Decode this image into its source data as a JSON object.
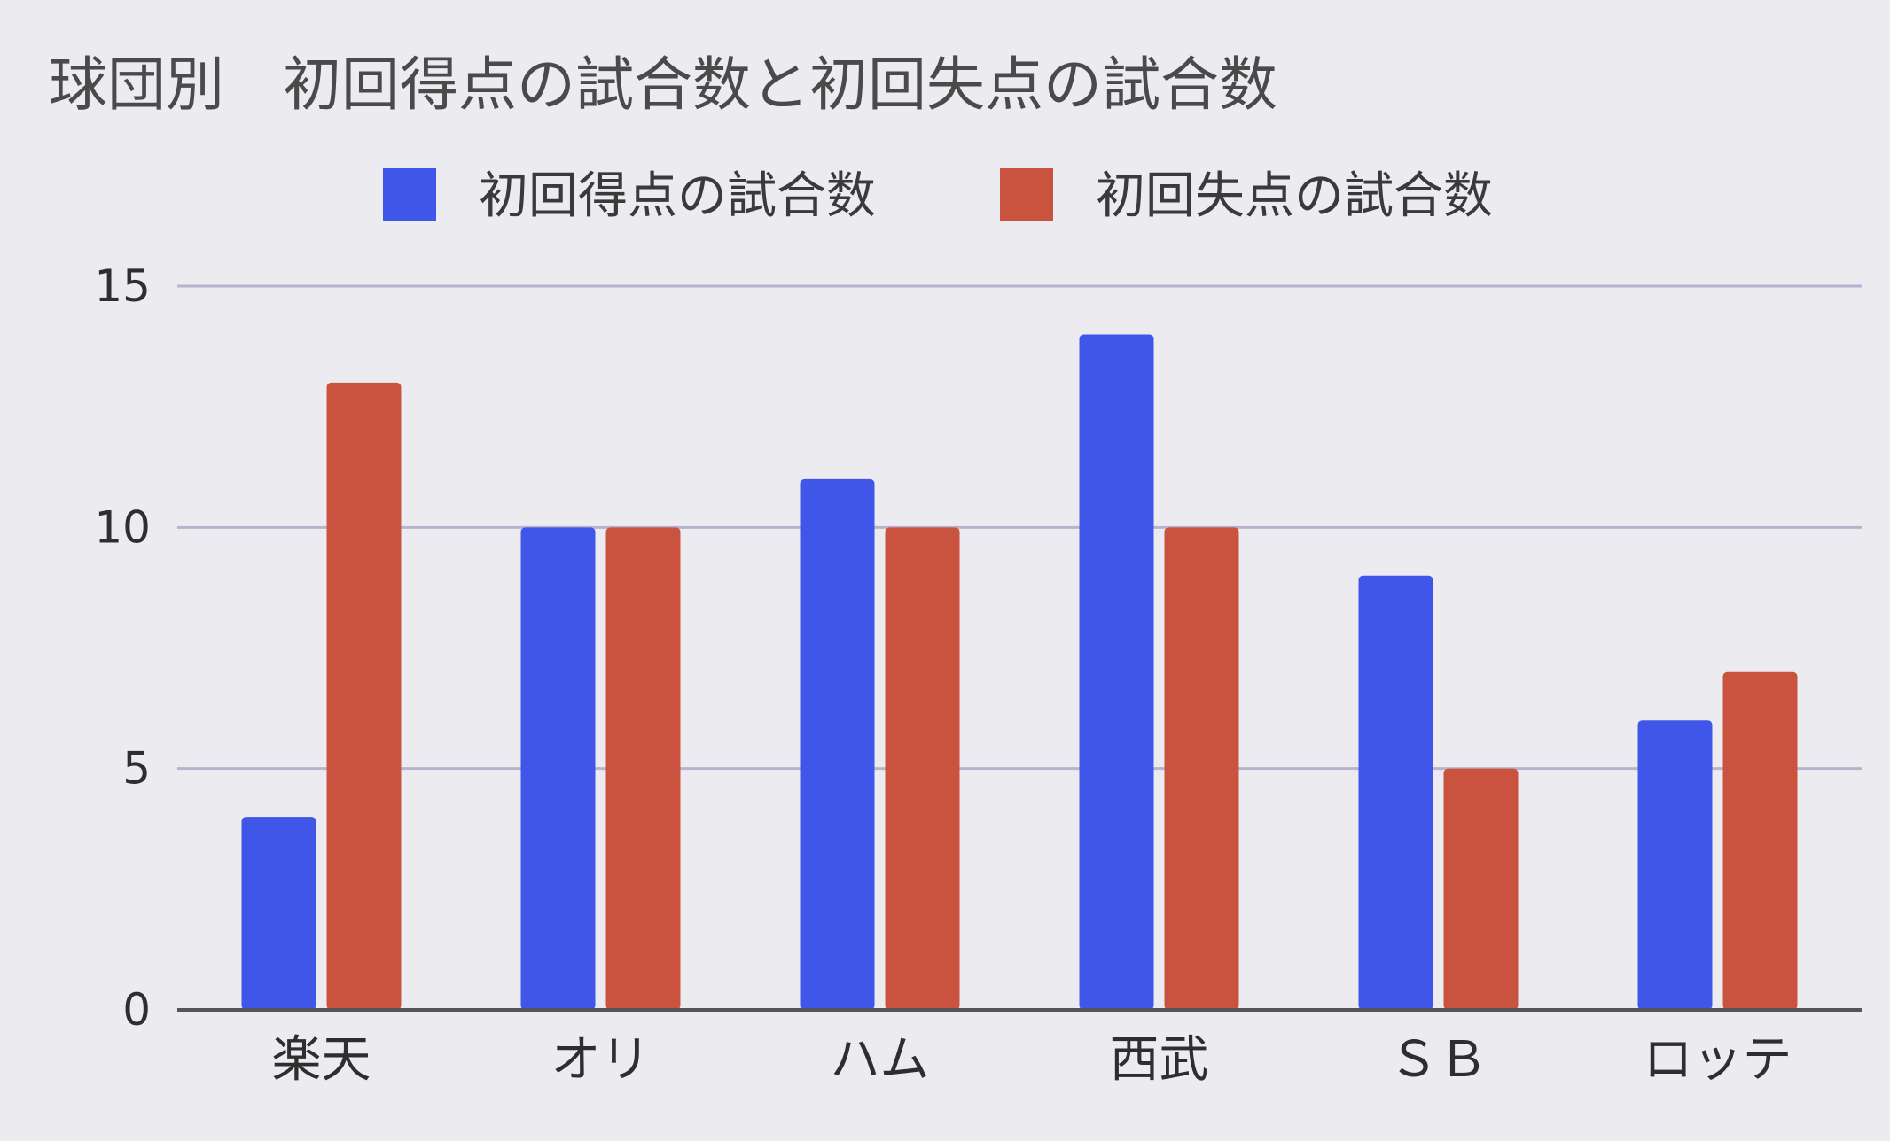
{
  "chart_data": {
    "type": "bar",
    "title": "球団別　初回得点の試合数と初回失点の試合数",
    "xlabel": "",
    "ylabel": "",
    "categories": [
      "楽天",
      "オリ",
      "ハム",
      "西武",
      "ＳＢ",
      "ロッテ"
    ],
    "series": [
      {
        "name": "初回得点の試合数",
        "color": "#3f56e8",
        "values": [
          4,
          10,
          11,
          14,
          9,
          6
        ]
      },
      {
        "name": "初回失点の試合数",
        "color": "#c9533f",
        "values": [
          13,
          10,
          10,
          10,
          5,
          7
        ]
      }
    ],
    "ylim": [
      0,
      15
    ],
    "yticks": [
      0,
      5,
      10,
      15
    ],
    "grid": true,
    "legend_position": "top"
  }
}
